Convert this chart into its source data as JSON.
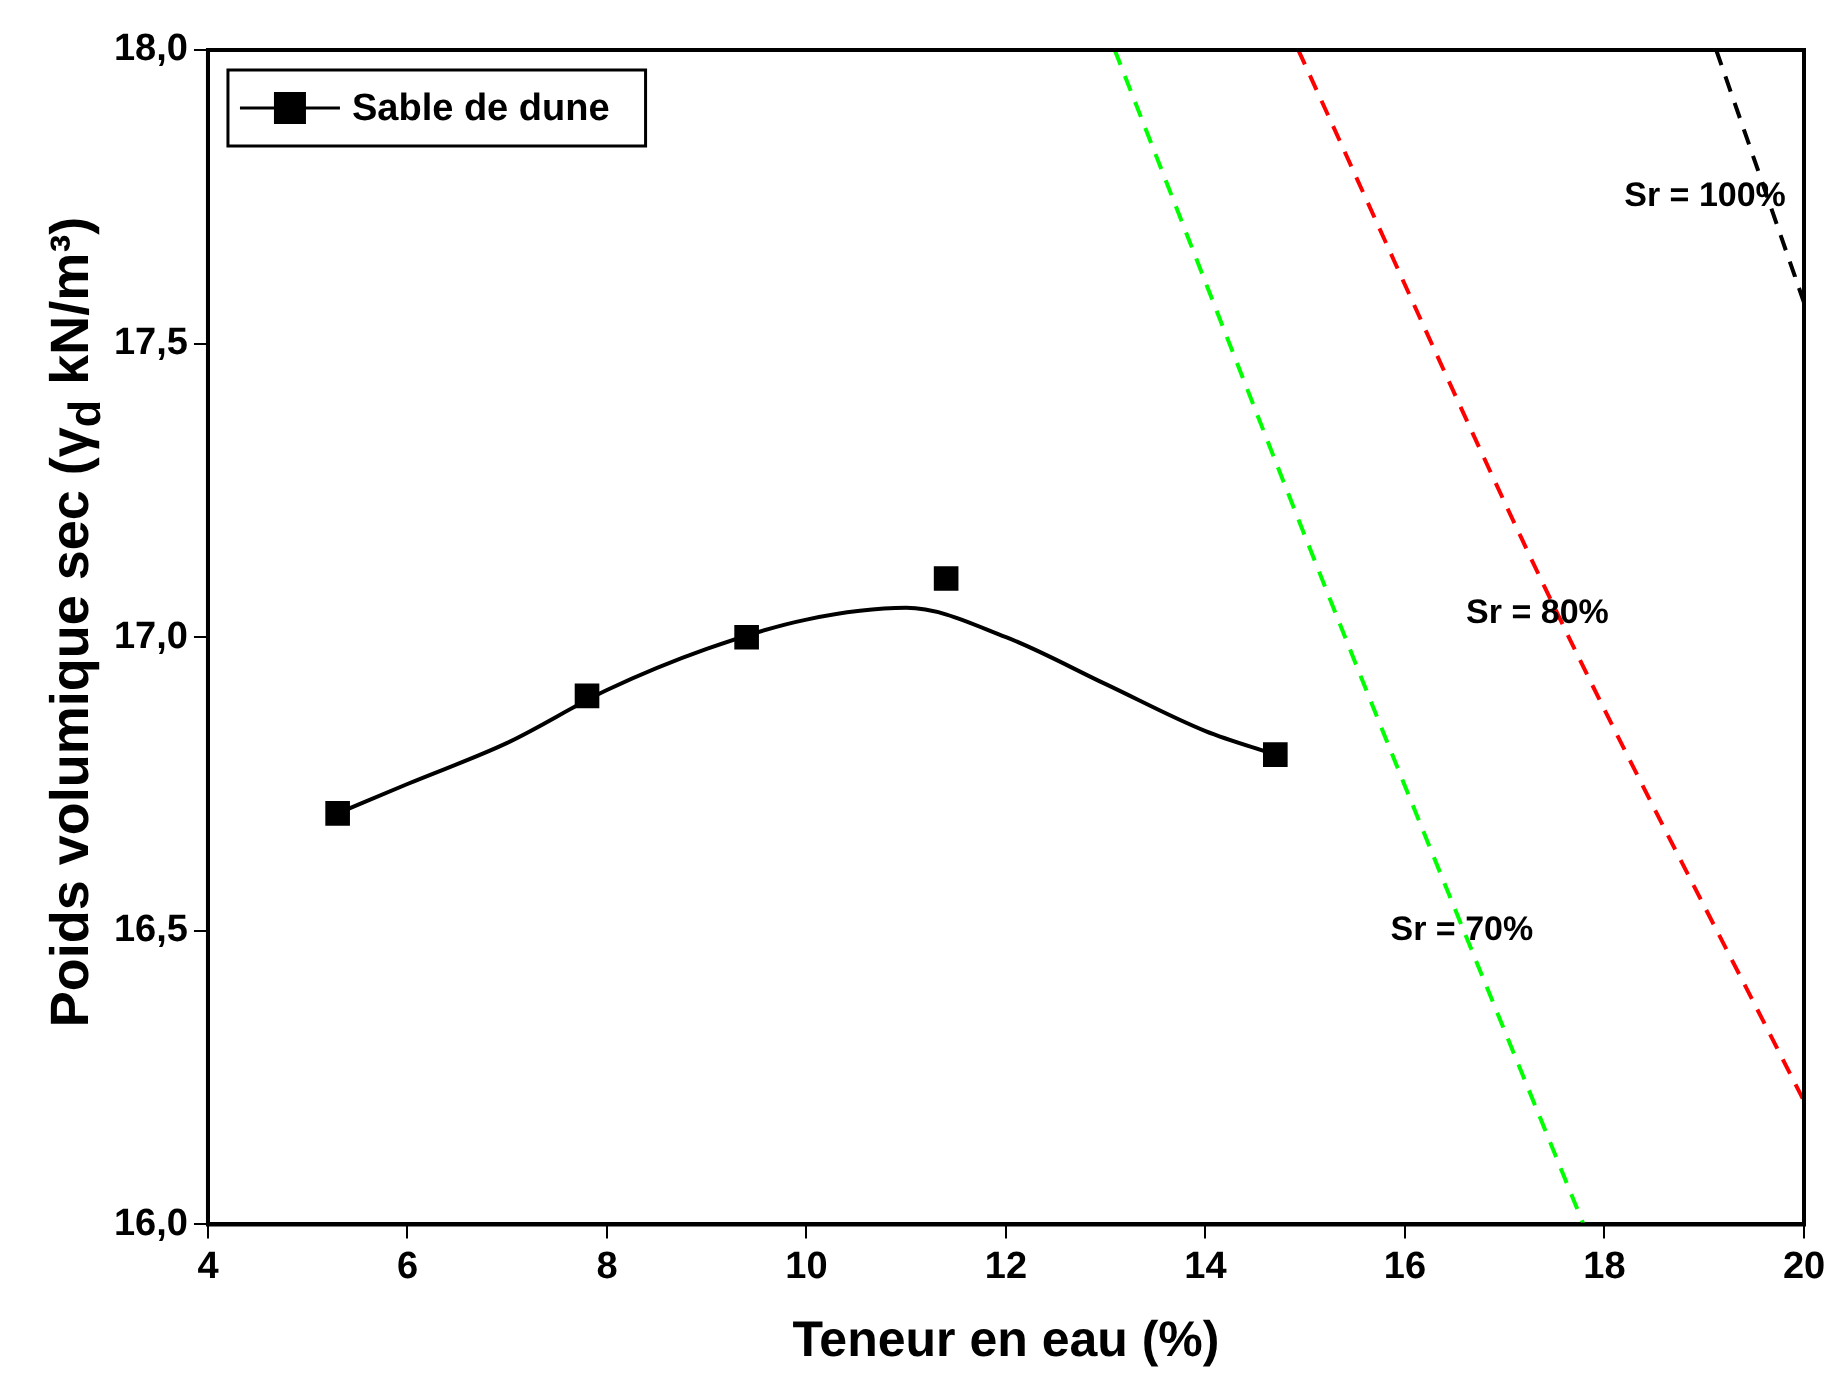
{
  "chart_data": {
    "type": "scatter",
    "xlabel": "Teneur en eau (%)",
    "ylabel": "Poids volumique sec (γ$_{d}$ kN/m³)",
    "xlim": [
      4,
      20
    ],
    "xticks": [
      4,
      6,
      8,
      10,
      12,
      14,
      16,
      18,
      20
    ],
    "ylim": [
      16,
      18
    ],
    "yticks": [
      {
        "value": 16,
        "label": "16,0"
      },
      {
        "value": 16.5,
        "label": "16,5"
      },
      {
        "value": 17,
        "label": "17,0"
      },
      {
        "value": 17.5,
        "label": "17,5"
      },
      {
        "value": 18,
        "label": "18,0"
      }
    ],
    "grid": false,
    "legend": "top left",
    "marker": "square",
    "series": [
      {
        "name": "Sable de dune",
        "type": "scatter",
        "color": "#000000",
        "x": [
          5.3,
          7.8,
          9.4,
          11.4,
          14.7
        ],
        "values": [
          16.7,
          16.9,
          17.0,
          17.1,
          16.8
        ]
      },
      {
        "type": "line",
        "color": "#000000",
        "marker": "none",
        "x": [
          5.3,
          6,
          7,
          8,
          9,
          10,
          11,
          12,
          13,
          14,
          14.7
        ],
        "values": [
          16.7,
          16.75,
          16.82,
          16.91,
          16.98,
          17.03,
          17.05,
          17.0,
          16.92,
          16.84,
          16.8
        ]
      },
      {
        "type": "line",
        "color": "#00ff00",
        "marker": "none",
        "line_style": "dashed",
        "x": [
          13.09,
          15.4,
          17.79
        ],
        "values": [
          18,
          17.0,
          16
        ]
      },
      {
        "type": "line",
        "color": "#ff0000",
        "marker": "none",
        "line_style": "dashed",
        "x": [
          14.93,
          17.5,
          20
        ],
        "values": [
          18,
          17.05,
          16.21
        ]
      },
      {
        "type": "line",
        "color": "#000000",
        "marker": "none",
        "line_style": "dashed",
        "x": [
          19.12,
          20
        ],
        "values": [
          18,
          17.57
        ]
      }
    ],
    "annotations": [
      {
        "text": "Sr = 70%",
        "x": 16.57,
        "y": 16.5
      },
      "Sr = 80%",
      "Sr = 100%"
    ]
  }
}
